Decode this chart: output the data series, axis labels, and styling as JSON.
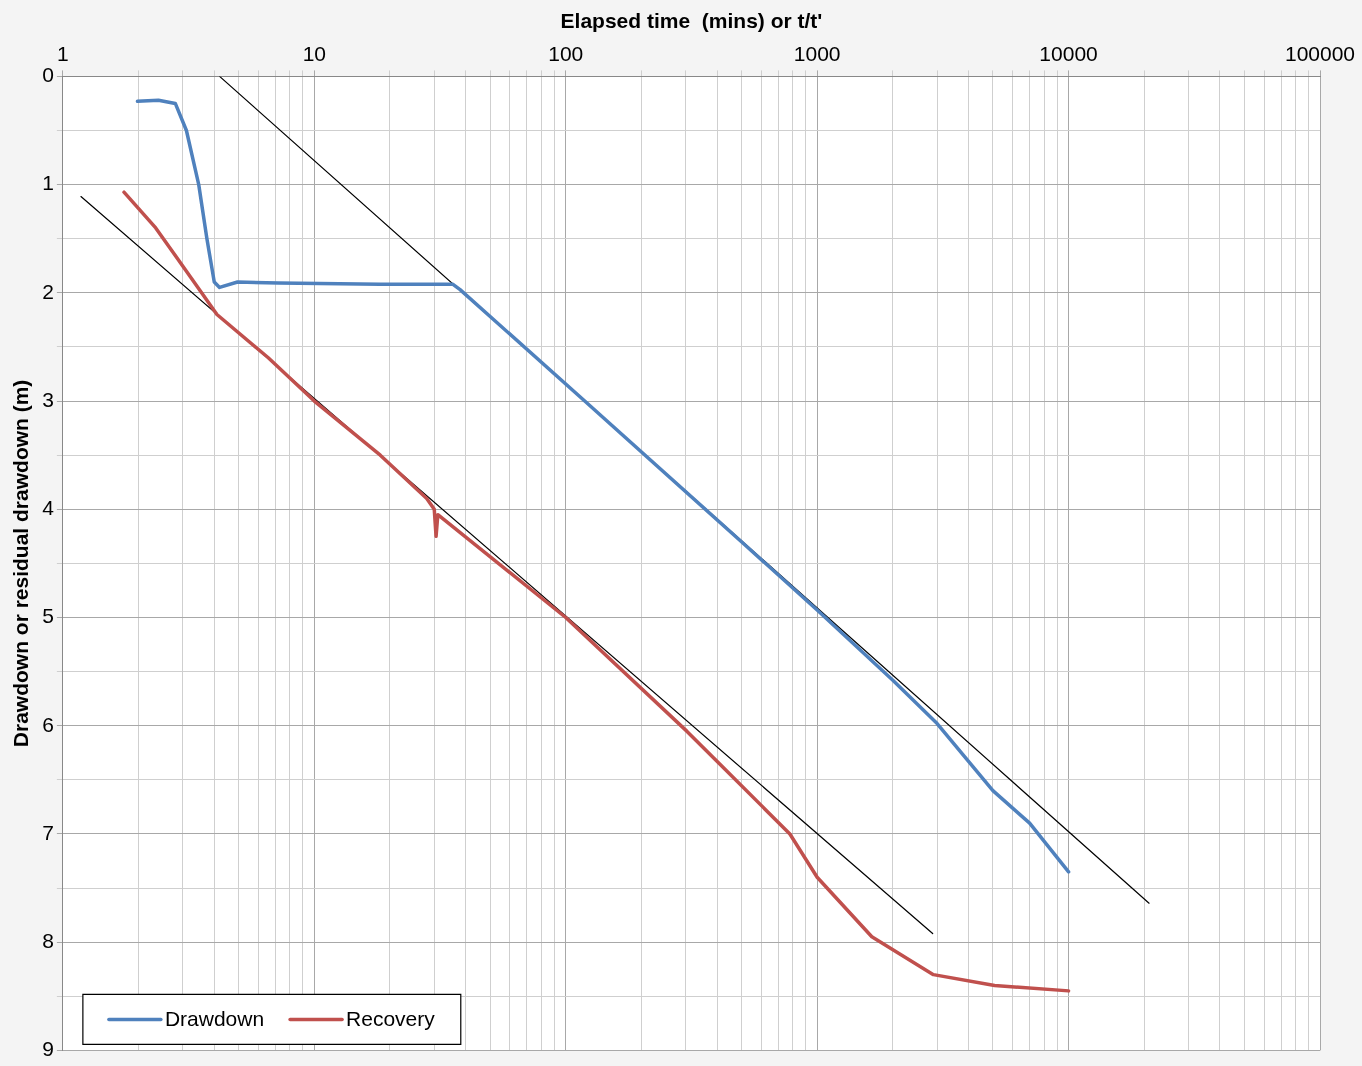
{
  "chart_data": {
    "type": "line",
    "xlabel": "Elapsed time  (mins) or t/t'",
    "ylabel": "Drawdown or residual drawdown (m)",
    "log": "x",
    "grid": true,
    "legend": "bottom left",
    "marker": "none",
    "line_style": "solid",
    "xlim": [
      1,
      100000
    ],
    "xticks": [
      1,
      {
        "value": 2,
        "label": null
      },
      {
        "value": 3,
        "label": null
      },
      {
        "value": 4,
        "label": null
      },
      {
        "value": 5,
        "label": null
      },
      {
        "value": 6,
        "label": null
      },
      {
        "value": 7,
        "label": null
      },
      {
        "value": 8,
        "label": null
      },
      {
        "value": 9,
        "label": null
      },
      10,
      {
        "value": 20,
        "label": null
      },
      {
        "value": 30,
        "label": null
      },
      {
        "value": 40,
        "label": null
      },
      {
        "value": 50,
        "label": null
      },
      {
        "value": 60,
        "label": null
      },
      {
        "value": 70,
        "label": null
      },
      {
        "value": 80,
        "label": null
      },
      {
        "value": 90,
        "label": null
      },
      100,
      {
        "value": 200,
        "label": null
      },
      {
        "value": 300,
        "label": null
      },
      {
        "value": 400,
        "label": null
      },
      {
        "value": 500,
        "label": null
      },
      {
        "value": 600,
        "label": null
      },
      {
        "value": 700,
        "label": null
      },
      {
        "value": 800,
        "label": null
      },
      {
        "value": 900,
        "label": null
      },
      1000,
      {
        "value": 2000,
        "label": null
      },
      {
        "value": 3000,
        "label": null
      },
      {
        "value": 4000,
        "label": null
      },
      {
        "value": 5000,
        "label": null
      },
      {
        "value": 6000,
        "label": null
      },
      {
        "value": 7000,
        "label": null
      },
      {
        "value": 8000,
        "label": null
      },
      {
        "value": 9000,
        "label": null
      },
      10000,
      {
        "value": 20000,
        "label": null
      },
      {
        "value": 30000,
        "label": null
      },
      {
        "value": 40000,
        "label": null
      },
      {
        "value": 50000,
        "label": null
      },
      {
        "value": 60000,
        "label": null
      },
      {
        "value": 70000,
        "label": null
      },
      {
        "value": 80000,
        "label": null
      },
      {
        "value": 90000,
        "label": null
      },
      100000
    ],
    "ylim": [
      9,
      0
    ],
    "yticks": [
      0,
      {
        "value": 0.5,
        "label": null
      },
      1,
      {
        "value": 1.5,
        "label": null
      },
      2,
      {
        "value": 2.5,
        "label": null
      },
      3,
      {
        "value": 3.5,
        "label": null
      },
      4,
      {
        "value": 4.5,
        "label": null
      },
      5,
      {
        "value": 5.5,
        "label": null
      },
      6,
      {
        "value": 6.5,
        "label": null
      },
      7,
      {
        "value": 7.5,
        "label": null
      },
      8,
      {
        "value": 8.5,
        "label": null
      },
      9
    ],
    "series": [
      {
        "name": "Drawdown",
        "color": "#4f81bd",
        "x": [
          1.98,
          2.4,
          2.8,
          3.1,
          3.47,
          3.74,
          4.0,
          4.2,
          4.95,
          7.2,
          18.3,
          35.5,
          38,
          119,
          500,
          1000,
          2000,
          3000,
          5000,
          7000,
          10000
        ],
        "values": [
          0.23,
          0.22,
          0.25,
          0.5,
          1.0,
          1.5,
          1.9,
          1.95,
          1.9,
          1.91,
          1.92,
          1.92,
          1.97,
          3.0,
          4.3,
          4.93,
          5.58,
          5.98,
          6.6,
          6.9,
          7.35
        ]
      },
      {
        "name": "Recovery",
        "color": "#c0504d",
        "x": [
          1.75,
          2.34,
          3.1,
          4.1,
          6.56,
          10,
          18.3,
          28,
          30,
          30.5,
          31,
          100,
          303,
          779,
          1000,
          1650,
          2900,
          5080,
          10000
        ],
        "values": [
          1.07,
          1.4,
          1.8,
          2.2,
          2.6,
          3.0,
          3.5,
          3.9,
          4.0,
          4.25,
          4.05,
          5.0,
          6.05,
          7.0,
          7.4,
          7.95,
          8.3,
          8.4,
          8.45
        ]
      },
      {
        "color": "#000000",
        "x": [
          4.2,
          20900
        ],
        "values": [
          0,
          7.64
        ]
      },
      {
        "color": "#000000",
        "x": [
          1.18,
          2880
        ],
        "values": [
          1.11,
          7.92
        ]
      }
    ]
  }
}
